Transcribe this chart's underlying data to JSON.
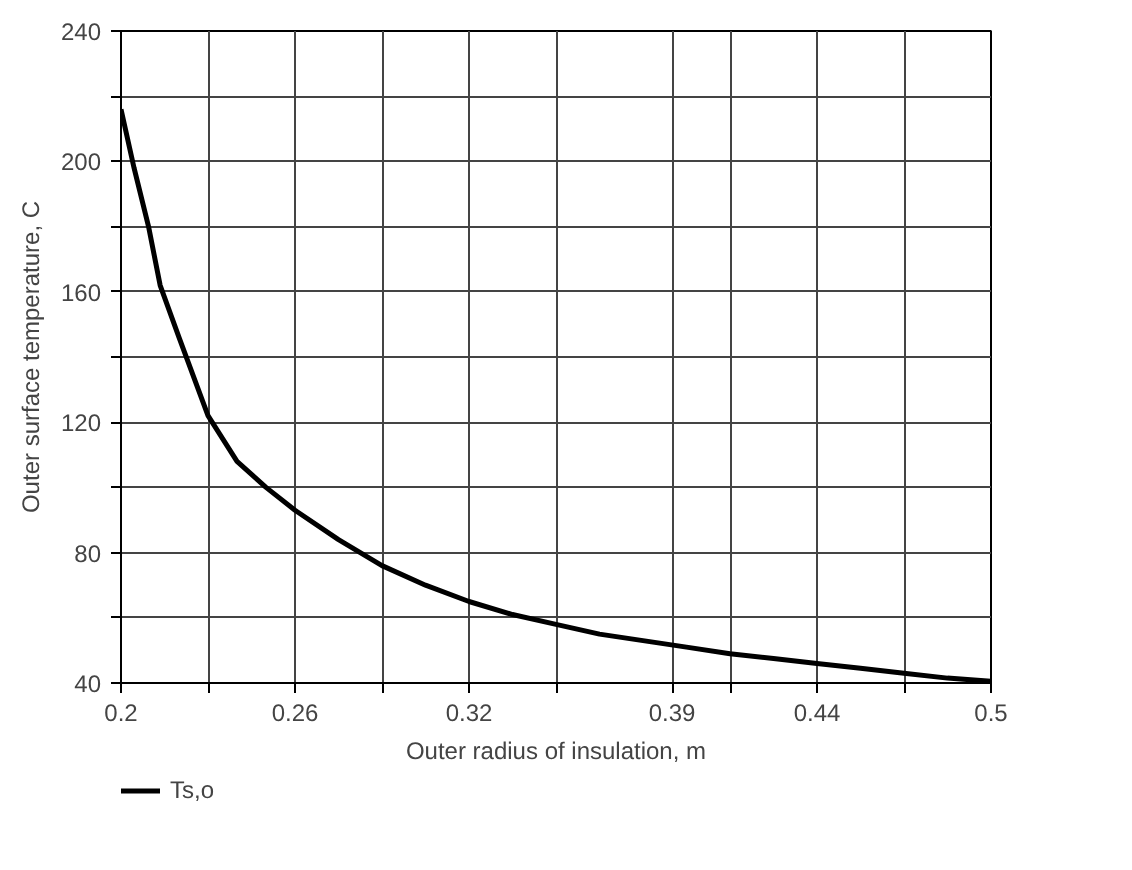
{
  "chart_data": {
    "type": "line",
    "xlabel": "Outer radius of insulation, m",
    "ylabel": "Outer surface temperature, C",
    "series": [
      {
        "name": "Ts,o",
        "color": "#000000",
        "x": [
          0.2,
          0.2045,
          0.2095,
          0.2135,
          0.22,
          0.23,
          0.24,
          0.25,
          0.26,
          0.275,
          0.29,
          0.305,
          0.32,
          0.335,
          0.35,
          0.365,
          0.38,
          0.395,
          0.41,
          0.425,
          0.44,
          0.455,
          0.47,
          0.485,
          0.5
        ],
        "values": [
          216,
          198,
          180,
          162,
          146,
          122,
          108,
          100,
          93,
          84,
          76,
          70,
          65,
          61,
          58,
          55,
          53,
          51,
          49,
          47.5,
          46,
          44.5,
          43,
          41.5,
          40.5
        ]
      }
    ],
    "xlim": [
      0.2,
      0.5
    ],
    "ylim": [
      40,
      240
    ],
    "xticks": [
      0.2,
      {
        "value": 0.23,
        "label": null
      },
      0.26,
      {
        "value": 0.29,
        "label": null
      },
      0.32,
      {
        "value": 0.35,
        "label": null
      },
      0.39,
      {
        "value": 0.41,
        "label": null
      },
      0.44,
      {
        "value": 0.47,
        "label": null
      },
      0.5
    ],
    "yticks": [
      40,
      {
        "value": 60,
        "label": null
      },
      80,
      {
        "value": 100,
        "label": null
      },
      120,
      {
        "value": 140,
        "label": null
      },
      160,
      {
        "value": 180,
        "label": null
      },
      200,
      {
        "value": 220,
        "label": null
      },
      240
    ],
    "grid": true,
    "legend": "bottom",
    "marker": "none",
    "line_style": "solid"
  }
}
